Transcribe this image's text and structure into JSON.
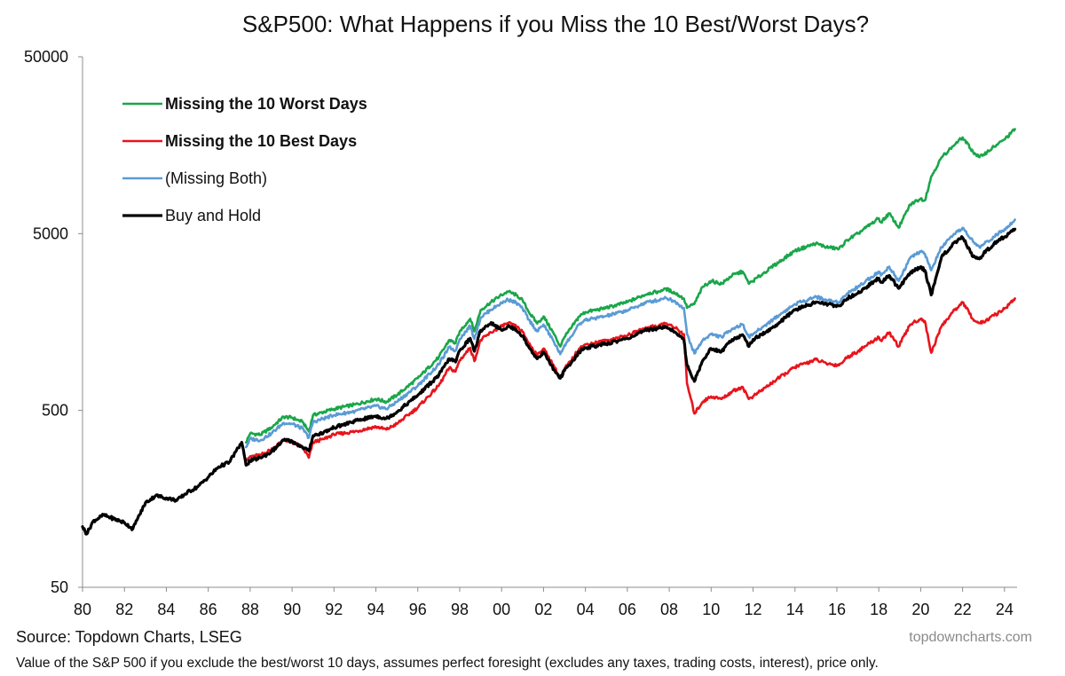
{
  "chart_data": {
    "type": "line",
    "title": "S&P500: What Happens if you Miss the 10 Best/Worst Days?",
    "y_scale": "log",
    "ylim": [
      50,
      50000
    ],
    "y_ticks": [
      50,
      500,
      5000,
      50000
    ],
    "y_tick_labels": [
      "50",
      "500",
      "5000",
      "50000"
    ],
    "xlim": [
      1980,
      2024.6
    ],
    "x_ticks": [
      1980,
      1982,
      1984,
      1986,
      1988,
      1990,
      1992,
      1994,
      1996,
      1998,
      2000,
      2002,
      2004,
      2006,
      2008,
      2010,
      2012,
      2014,
      2016,
      2018,
      2020,
      2022,
      2024
    ],
    "x_tick_labels": [
      "80",
      "82",
      "84",
      "86",
      "88",
      "90",
      "92",
      "94",
      "96",
      "98",
      "00",
      "02",
      "04",
      "06",
      "08",
      "10",
      "12",
      "14",
      "16",
      "18",
      "20",
      "22",
      "24"
    ],
    "grid": false,
    "legend_position": "top-left",
    "source": "Source: Topdown Charts, LSEG",
    "brand": "topdowncharts.com",
    "footnote": "Value of the S&P 500 if you exclude the best/worst 10 days, assumes perfect foresight (excludes any taxes, trading costs, interest), price only.",
    "series": [
      {
        "name": "Missing the 10 Worst Days",
        "color": "#1aa64a",
        "bold_label": true,
        "x": [
          1987.8,
          1988.0,
          1988.5,
          1989.0,
          1989.6,
          1990.0,
          1990.5,
          1990.8,
          1991.0,
          1991.5,
          1992.0,
          1993.0,
          1994.0,
          1994.5,
          1995.0,
          1996.0,
          1997.0,
          1997.5,
          1997.8,
          1998.0,
          1998.5,
          1998.7,
          1999.0,
          1999.5,
          2000.0,
          2000.3,
          2000.7,
          2001.0,
          2001.3,
          2001.7,
          2002.0,
          2002.5,
          2002.8,
          2003.0,
          2003.3,
          2003.7,
          2004.0,
          2005.0,
          2006.0,
          2007.0,
          2007.5,
          2007.8,
          2008.3,
          2008.7,
          2008.85,
          2009.2,
          2009.6,
          2010.0,
          2010.5,
          2011.0,
          2011.5,
          2011.8,
          2012.0,
          2013.0,
          2014.0,
          2015.0,
          2015.5,
          2016.1,
          2016.5,
          2017.0,
          2018.0,
          2018.1,
          2018.5,
          2018.95,
          2019.5,
          2020.0,
          2020.2,
          2020.5,
          2021.0,
          2021.5,
          2022.0,
          2022.5,
          2022.8,
          2023.0,
          2023.5,
          2024.0,
          2024.5
        ],
        "values": [
          330,
          370,
          365,
          400,
          460,
          455,
          430,
          380,
          470,
          490,
          510,
          540,
          580,
          560,
          610,
          760,
          1000,
          1250,
          1200,
          1400,
          1650,
          1400,
          1850,
          2050,
          2250,
          2350,
          2250,
          2100,
          1800,
          1550,
          1700,
          1350,
          1150,
          1300,
          1450,
          1700,
          1800,
          1900,
          2050,
          2300,
          2350,
          2450,
          2300,
          2150,
          1900,
          2000,
          2500,
          2700,
          2600,
          2900,
          3050,
          2600,
          2700,
          3300,
          4000,
          4400,
          4200,
          4100,
          4600,
          5000,
          6100,
          5800,
          6500,
          5400,
          7300,
          7900,
          7700,
          10500,
          13500,
          15500,
          17500,
          14500,
          13500,
          14000,
          15500,
          17000,
          19500
        ]
      },
      {
        "name": "Missing the 10 Best Days",
        "color": "#e8141c",
        "bold_label": true,
        "x": [
          1987.8,
          1988.0,
          1988.5,
          1989.0,
          1989.6,
          1990.0,
          1990.5,
          1990.8,
          1991.0,
          1991.5,
          1992.0,
          1993.0,
          1994.0,
          1994.5,
          1995.0,
          1996.0,
          1997.0,
          1997.5,
          1997.8,
          1998.0,
          1998.5,
          1998.7,
          1999.0,
          1999.5,
          2000.0,
          2000.3,
          2000.7,
          2001.0,
          2001.3,
          2001.7,
          2002.0,
          2002.5,
          2002.8,
          2003.0,
          2003.3,
          2003.7,
          2004.0,
          2005.0,
          2006.0,
          2007.0,
          2007.5,
          2007.8,
          2008.3,
          2008.7,
          2008.85,
          2009.2,
          2009.6,
          2010.0,
          2010.5,
          2011.0,
          2011.5,
          2011.8,
          2012.0,
          2013.0,
          2014.0,
          2015.0,
          2015.5,
          2016.1,
          2016.5,
          2017.0,
          2018.0,
          2018.1,
          2018.5,
          2018.95,
          2019.5,
          2020.0,
          2020.2,
          2020.5,
          2021.0,
          2021.5,
          2022.0,
          2022.5,
          2022.8,
          2023.0,
          2023.5,
          2024.0,
          2024.5
        ],
        "values": [
          265,
          275,
          280,
          300,
          340,
          330,
          310,
          270,
          330,
          345,
          365,
          380,
          405,
          390,
          420,
          520,
          690,
          870,
          830,
          960,
          1130,
          950,
          1250,
          1380,
          1500,
          1560,
          1490,
          1390,
          1200,
          1030,
          1120,
          890,
          760,
          860,
          950,
          1120,
          1180,
          1240,
          1330,
          1480,
          1510,
          1560,
          1460,
          1350,
          710,
          480,
          560,
          600,
          580,
          640,
          680,
          580,
          600,
          730,
          880,
          970,
          920,
          900,
          1000,
          1080,
          1300,
          1240,
          1380,
          1150,
          1530,
          1650,
          1600,
          1060,
          1500,
          1780,
          2050,
          1640,
          1560,
          1580,
          1720,
          1880,
          2150
        ]
      },
      {
        "name": "(Missing Both)",
        "color": "#5b9bd5",
        "bold_label": false,
        "x": [
          1987.8,
          1988.0,
          1988.5,
          1989.0,
          1989.6,
          1990.0,
          1990.5,
          1990.8,
          1991.0,
          1991.5,
          1992.0,
          1993.0,
          1994.0,
          1994.5,
          1995.0,
          1996.0,
          1997.0,
          1997.5,
          1997.8,
          1998.0,
          1998.5,
          1998.7,
          1999.0,
          1999.5,
          2000.0,
          2000.3,
          2000.7,
          2001.0,
          2001.3,
          2001.7,
          2002.0,
          2002.5,
          2002.8,
          2003.0,
          2003.3,
          2003.7,
          2004.0,
          2005.0,
          2006.0,
          2007.0,
          2007.5,
          2007.8,
          2008.3,
          2008.7,
          2008.85,
          2009.2,
          2009.6,
          2010.0,
          2010.5,
          2011.0,
          2011.5,
          2011.8,
          2012.0,
          2013.0,
          2014.0,
          2015.0,
          2015.5,
          2016.1,
          2016.5,
          2017.0,
          2018.0,
          2018.1,
          2018.5,
          2018.95,
          2019.5,
          2020.0,
          2020.2,
          2020.5,
          2021.0,
          2021.5,
          2022.0,
          2022.5,
          2022.8,
          2023.0,
          2023.5,
          2024.0,
          2024.5
        ],
        "values": [
          310,
          345,
          340,
          370,
          425,
          420,
          395,
          350,
          430,
          450,
          470,
          495,
          530,
          510,
          560,
          690,
          910,
          1140,
          1090,
          1270,
          1500,
          1270,
          1680,
          1860,
          2030,
          2120,
          2030,
          1890,
          1630,
          1400,
          1530,
          1220,
          1040,
          1170,
          1300,
          1530,
          1620,
          1710,
          1840,
          2060,
          2100,
          2190,
          2050,
          1900,
          1350,
          1050,
          1250,
          1350,
          1300,
          1450,
          1530,
          1300,
          1350,
          1650,
          2000,
          2200,
          2100,
          2050,
          2300,
          2500,
          3050,
          2900,
          3250,
          2700,
          3650,
          3950,
          3850,
          3100,
          4200,
          4800,
          5400,
          4500,
          4200,
          4350,
          4800,
          5300,
          6000
        ]
      },
      {
        "name": "Buy and Hold",
        "color": "#000000",
        "bold_label": false,
        "x": [
          1980.0,
          1980.2,
          1980.5,
          1981.0,
          1981.5,
          1982.0,
          1982.4,
          1982.6,
          1983.0,
          1983.5,
          1984.0,
          1984.5,
          1985.0,
          1985.5,
          1986.0,
          1986.5,
          1987.0,
          1987.6,
          1987.8,
          1988.0,
          1988.5,
          1989.0,
          1989.6,
          1990.0,
          1990.5,
          1990.8,
          1991.0,
          1991.5,
          1992.0,
          1993.0,
          1994.0,
          1994.5,
          1995.0,
          1996.0,
          1997.0,
          1997.5,
          1997.8,
          1998.0,
          1998.5,
          1998.7,
          1999.0,
          1999.5,
          2000.0,
          2000.3,
          2000.7,
          2001.0,
          2001.3,
          2001.7,
          2002.0,
          2002.5,
          2002.8,
          2003.0,
          2003.3,
          2003.7,
          2004.0,
          2005.0,
          2006.0,
          2007.0,
          2007.5,
          2007.8,
          2008.3,
          2008.7,
          2008.85,
          2009.2,
          2009.6,
          2010.0,
          2010.5,
          2011.0,
          2011.5,
          2011.8,
          2012.0,
          2013.0,
          2014.0,
          2015.0,
          2015.5,
          2016.1,
          2016.5,
          2017.0,
          2018.0,
          2018.1,
          2018.5,
          2018.95,
          2019.5,
          2020.0,
          2020.2,
          2020.5,
          2021.0,
          2021.5,
          2022.0,
          2022.5,
          2022.8,
          2023.0,
          2023.5,
          2024.0,
          2024.5
        ],
        "values": [
          110,
          100,
          118,
          128,
          122,
          116,
          107,
          120,
          150,
          165,
          160,
          155,
          172,
          185,
          210,
          240,
          255,
          330,
          245,
          260,
          270,
          290,
          340,
          335,
          310,
          295,
          360,
          375,
          400,
          435,
          465,
          450,
          490,
          610,
          790,
          980,
          940,
          1090,
          1280,
          1080,
          1420,
          1570,
          1420,
          1500,
          1430,
          1320,
          1140,
          980,
          1070,
          850,
          760,
          840,
          920,
          1070,
          1130,
          1190,
          1280,
          1430,
          1460,
          1500,
          1380,
          1250,
          900,
          730,
          960,
          1120,
          1080,
          1260,
          1340,
          1150,
          1260,
          1480,
          1850,
          2050,
          2000,
          1950,
          2150,
          2300,
          2800,
          2650,
          2900,
          2450,
          3000,
          3250,
          3100,
          2250,
          3700,
          4300,
          4750,
          3700,
          3600,
          3850,
          4400,
          4800,
          5300
        ]
      }
    ]
  }
}
